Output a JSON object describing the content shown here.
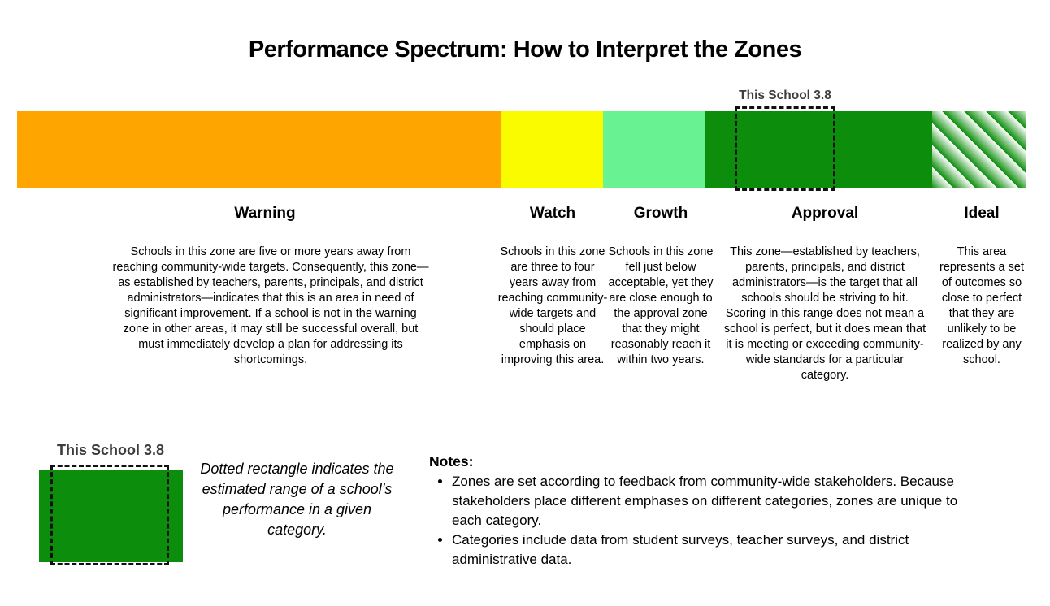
{
  "title": "Performance Spectrum: How to Interpret the Zones",
  "school_marker": {
    "label": "This School 3.8",
    "score": "3.8",
    "zone": "Approval"
  },
  "colors": {
    "warning": "#ffa500",
    "watch": "#fbfb00",
    "growth": "#68f291",
    "approval": "#0c8e0c",
    "ideal_stripe_green": "#0c8e0c",
    "ideal_stripe_light": "#ffffff",
    "marker_label_text": "#3d3d3d",
    "dashed_outline": "#111111"
  },
  "zones": [
    {
      "name": "Warning",
      "description": "Schools in this zone are five or more years away from reaching community-wide targets. Consequently, this zone—as established by teachers, parents, principals, and district administrators—indicates that this is an area in need of significant improvement. If a school is not in the warning zone in other areas, it may still be successful overall, but must immediately develop a plan for addressing its shortcomings."
    },
    {
      "name": "Watch",
      "description": "Schools in this zone are three to four years away from reaching community-wide targets and should place emphasis on improving this area."
    },
    {
      "name": "Growth",
      "description": "Schools in this zone fell just below acceptable, yet they are close enough to the approval zone that they might reasonably reach it within two years."
    },
    {
      "name": "Approval",
      "description": "This zone—established by teachers, parents, principals, and district administrators—is the target that all schools should be striving to hit. Scoring in this range does not mean a school is perfect, but it does mean that it is meeting or exceeding community-wide standards for a particular category."
    },
    {
      "name": "Ideal",
      "description": "This area represents a set of outcomes so close to perfect that they are unlikely to be realized by any school."
    }
  ],
  "legend": {
    "marker_label": "This School 3.8",
    "caption": "Dotted rectangle indicates the estimated range of a school’s performance in a given category."
  },
  "notes": {
    "heading": "Notes:",
    "items": [
      "Zones are set according to feedback from community-wide stakeholders. Because stakeholders place different emphases on different categories, zones are unique to each category.",
      "Categories include data from student surveys, teacher surveys, and district administrative data."
    ]
  }
}
